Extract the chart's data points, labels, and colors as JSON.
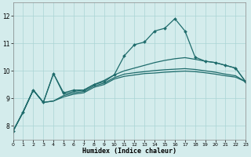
{
  "xlabel": "Humidex (Indice chaleur)",
  "xlim": [
    0,
    23
  ],
  "ylim": [
    7.5,
    12.5
  ],
  "yticks": [
    8,
    9,
    10,
    11,
    12
  ],
  "xticks": [
    0,
    1,
    2,
    3,
    4,
    5,
    6,
    7,
    8,
    9,
    10,
    11,
    12,
    13,
    14,
    15,
    16,
    17,
    18,
    19,
    20,
    21,
    22,
    23
  ],
  "background_color": "#d4ecec",
  "line_color": "#1e6b6b",
  "grid_color": "#aad4d4",
  "line1_x": [
    0,
    1,
    2,
    3,
    4,
    5,
    6,
    7,
    8,
    9,
    10,
    11,
    12,
    13,
    14,
    15,
    16,
    17,
    18,
    19,
    20,
    21,
    22,
    23
  ],
  "line1_y": [
    7.8,
    8.5,
    9.3,
    8.85,
    9.9,
    9.2,
    9.3,
    9.3,
    9.5,
    9.6,
    9.85,
    10.55,
    10.95,
    11.05,
    11.45,
    11.55,
    11.9,
    11.45,
    10.5,
    10.35,
    10.3,
    10.2,
    10.1,
    9.6
  ],
  "line2_x": [
    0,
    1,
    2,
    3,
    4,
    5,
    6,
    7,
    8,
    9,
    10,
    11,
    12,
    13,
    14,
    15,
    16,
    17,
    18,
    19,
    20,
    21,
    22,
    23
  ],
  "line2_y": [
    7.8,
    8.5,
    9.3,
    8.85,
    9.9,
    9.15,
    9.25,
    9.3,
    9.5,
    9.65,
    9.85,
    10.0,
    10.1,
    10.2,
    10.3,
    10.38,
    10.44,
    10.48,
    10.42,
    10.35,
    10.3,
    10.2,
    10.1,
    9.6
  ],
  "line3_x": [
    0,
    1,
    2,
    3,
    4,
    5,
    6,
    7,
    8,
    9,
    10,
    11,
    12,
    13,
    14,
    15,
    16,
    17,
    18,
    19,
    20,
    21,
    22,
    23
  ],
  "line3_y": [
    7.8,
    8.5,
    9.3,
    8.85,
    8.9,
    9.1,
    9.2,
    9.25,
    9.45,
    9.55,
    9.75,
    9.88,
    9.93,
    9.97,
    10.01,
    10.04,
    10.06,
    10.08,
    10.05,
    10.0,
    9.95,
    9.88,
    9.82,
    9.6
  ],
  "line4_x": [
    0,
    1,
    2,
    3,
    4,
    5,
    6,
    7,
    8,
    9,
    10,
    11,
    12,
    13,
    14,
    15,
    16,
    17,
    18,
    19,
    20,
    21,
    22,
    23
  ],
  "line4_y": [
    7.8,
    8.5,
    9.3,
    8.85,
    8.9,
    9.05,
    9.15,
    9.2,
    9.4,
    9.5,
    9.7,
    9.8,
    9.85,
    9.9,
    9.92,
    9.95,
    9.97,
    9.99,
    9.97,
    9.93,
    9.88,
    9.82,
    9.77,
    9.6
  ]
}
